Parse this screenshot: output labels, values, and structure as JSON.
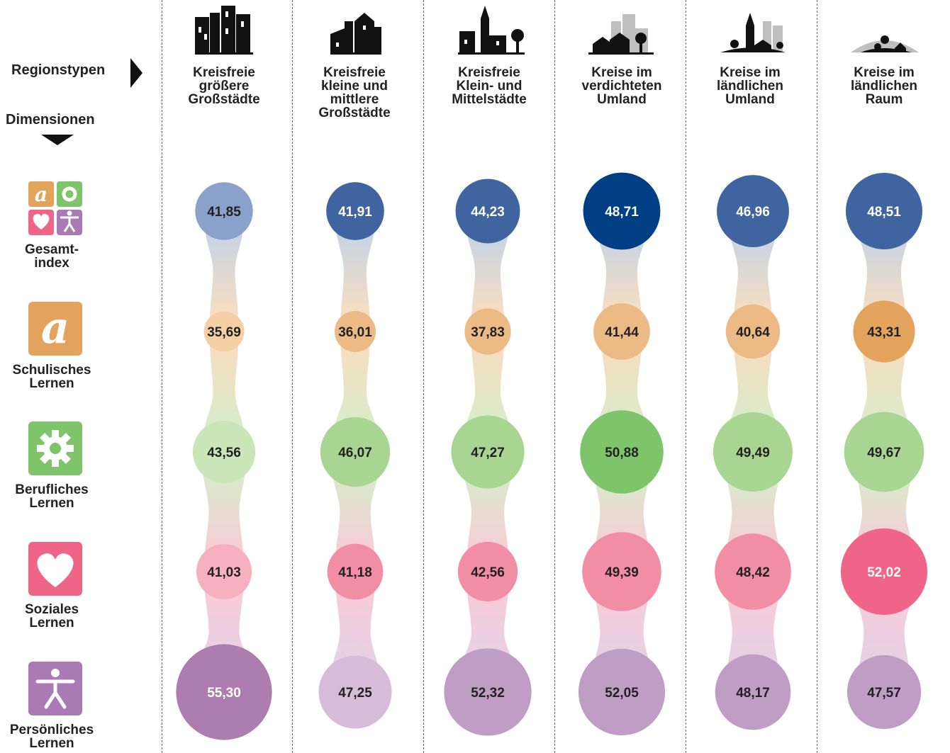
{
  "header": {
    "regions_label": "Regionstypen",
    "dimensions_label": "Dimensionen"
  },
  "dimensions": [
    {
      "label_line1": "Gesamt-",
      "label_line2": "index",
      "icon": "composite-index-icon"
    },
    {
      "label_line1": "Schulisches",
      "label_line2": "Lernen",
      "icon": "letter-a-icon",
      "color": "#E3A35D"
    },
    {
      "label_line1": "Berufliches",
      "label_line2": "Lernen",
      "icon": "gear-icon",
      "color": "#7DC46A"
    },
    {
      "label_line1": "Soziales",
      "label_line2": "Lernen",
      "icon": "heart-icon",
      "color": "#EE6587"
    },
    {
      "label_line1": "Persönliches",
      "label_line2": "Lernen",
      "icon": "person-icon",
      "color": "#A97AB3"
    }
  ],
  "regions": [
    {
      "lines": [
        "Kreisfreie",
        "größere",
        "Großstädte"
      ],
      "icon": "large-city-skyline-icon"
    },
    {
      "lines": [
        "Kreisfreie",
        "kleine und",
        "mittlere",
        "Großstädte"
      ],
      "icon": "mid-city-skyline-icon"
    },
    {
      "lines": [
        "Kreisfreie",
        "Klein- und",
        "Mittelstädte"
      ],
      "icon": "small-town-icon"
    },
    {
      "lines": [
        "Kreise im",
        "verdichteten",
        "Umland"
      ],
      "icon": "dense-suburb-icon"
    },
    {
      "lines": [
        "Kreise im",
        "ländlichen",
        "Umland"
      ],
      "icon": "rural-suburb-icon"
    },
    {
      "lines": [
        "Kreise im",
        "ländlichen",
        "Raum"
      ],
      "icon": "rural-village-icon"
    }
  ],
  "chart_data": {
    "type": "bubble-matrix",
    "categories": [
      "Kreisfreie größere Großstädte",
      "Kreisfreie kleine und mittlere Großstädte",
      "Kreisfreie Klein- und Mittelstädte",
      "Kreise im verdichteten Umland",
      "Kreise im ländlichen Umland",
      "Kreise im ländlichen Raum"
    ],
    "series": [
      {
        "name": "Gesamtindex",
        "values": [
          41.85,
          41.91,
          44.23,
          48.71,
          46.96,
          48.51
        ],
        "labels": [
          "41,85",
          "41,91",
          "44,23",
          "48,71",
          "46,96",
          "48,51"
        ]
      },
      {
        "name": "Schulisches Lernen",
        "values": [
          35.69,
          36.01,
          37.83,
          41.44,
          40.64,
          43.31
        ],
        "labels": [
          "35,69",
          "36,01",
          "37,83",
          "41,44",
          "40,64",
          "43,31"
        ]
      },
      {
        "name": "Berufliches Lernen",
        "values": [
          43.56,
          46.07,
          47.27,
          50.88,
          49.49,
          49.67
        ],
        "labels": [
          "43,56",
          "46,07",
          "47,27",
          "50,88",
          "49,49",
          "49,67"
        ]
      },
      {
        "name": "Soziales Lernen",
        "values": [
          41.03,
          41.18,
          42.56,
          49.39,
          48.42,
          52.02
        ],
        "labels": [
          "41,03",
          "41,18",
          "42,56",
          "49,39",
          "48,42",
          "52,02"
        ]
      },
      {
        "name": "Persönliches Lernen",
        "values": [
          55.3,
          47.25,
          52.32,
          52.05,
          48.17,
          47.57
        ],
        "labels": [
          "55,30",
          "47,25",
          "52,32",
          "52,05",
          "48,17",
          "47,57"
        ]
      }
    ],
    "colors": {
      "Gesamtindex": [
        "#8AA1CB",
        "#3F64A0",
        "#3F64A0",
        "#003F84",
        "#3F64A0",
        "#3F64A0"
      ],
      "Schulisches Lernen": [
        "#F4CFA5",
        "#ECBB85",
        "#ECBB85",
        "#ECBB85",
        "#ECBB85",
        "#E3A35D"
      ],
      "Berufliches Lernen": [
        "#CAE6B8",
        "#A8D592",
        "#A8D592",
        "#7DC46A",
        "#A8D592",
        "#A8D592"
      ],
      "Soziales Lernen": [
        "#F7B0BF",
        "#F28EA3",
        "#F28EA3",
        "#F28EA3",
        "#F28EA3",
        "#EE6587"
      ],
      "Persönliches Lernen": [
        "#AE7DB0",
        "#D6BCD9",
        "#C09DC5",
        "#C09DC5",
        "#C09DC5",
        "#C09DC5"
      ]
    }
  }
}
